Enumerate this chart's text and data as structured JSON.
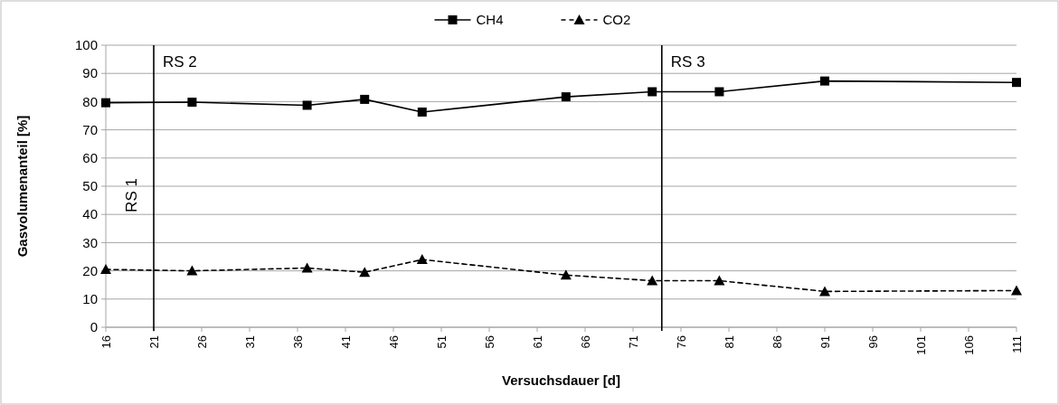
{
  "chart_data": {
    "type": "line",
    "xlabel": "Versuchsdauer [d]",
    "ylabel": "Gasvolumenanteil [%]",
    "x": [
      16,
      25,
      37,
      43,
      49,
      64,
      73,
      80,
      91,
      111
    ],
    "series": [
      {
        "name": "CH4",
        "color": "#000000",
        "marker": "square",
        "line_style": "solid",
        "values": [
          79.6,
          79.8,
          78.7,
          80.8,
          76.3,
          81.7,
          83.5,
          83.5,
          87.3,
          86.8
        ]
      },
      {
        "name": "CO2",
        "color": "#000000",
        "marker": "triangle",
        "line_style": "dashed",
        "values": [
          20.5,
          20,
          21,
          19.5,
          24,
          18.5,
          16.5,
          16.5,
          12.7,
          13
        ]
      }
    ],
    "xlim": [
      16,
      111
    ],
    "xticks": [
      16,
      21,
      26,
      31,
      36,
      41,
      46,
      51,
      56,
      61,
      66,
      71,
      76,
      81,
      86,
      91,
      96,
      101,
      106,
      111
    ],
    "ylim": [
      0,
      100
    ],
    "yticks": [
      0,
      10,
      20,
      30,
      40,
      50,
      60,
      70,
      80,
      90,
      100
    ],
    "grid": "y",
    "legend": "top",
    "ref_lines": [
      {
        "axis": "x",
        "value": 21,
        "label": "RS 2",
        "color": "#000000"
      },
      {
        "axis": "x",
        "value": 74,
        "label": "RS 3",
        "color": "#000000"
      }
    ],
    "annotations": [
      "RS 1"
    ]
  }
}
